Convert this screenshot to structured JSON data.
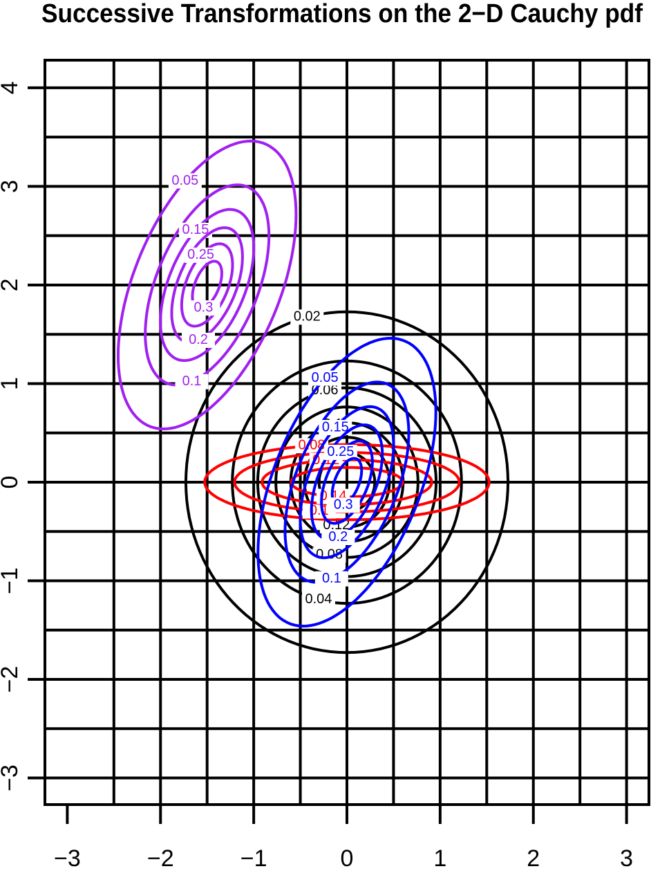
{
  "chart_data": {
    "type": "contour",
    "title": "Successive Transformations on the 2−D Cauchy pdf",
    "xlim": [
      -3.24,
      3.24
    ],
    "ylim": [
      -3.27,
      4.28
    ],
    "xticks": [
      {
        "value": -3,
        "label": "−3"
      },
      {
        "value": -2,
        "label": "−2"
      },
      {
        "value": -1,
        "label": "−1"
      },
      0,
      1,
      2,
      3
    ],
    "yticks": [
      {
        "value": -3,
        "label": "−3"
      },
      {
        "value": -2,
        "label": "−2"
      },
      {
        "value": -1,
        "label": "−1"
      },
      0,
      1,
      2,
      3,
      4
    ],
    "xgrid": [
      -2.5,
      -2,
      -1.5,
      -1,
      -0.5,
      0,
      0.5,
      1,
      1.5,
      2,
      2.5,
      3
    ],
    "ygrid": [
      -3,
      -2.5,
      -2,
      -1.5,
      -1,
      -0.5,
      0,
      0.5,
      1,
      1.5,
      2,
      2.5,
      3,
      3.5,
      4
    ],
    "series": [
      {
        "color": "#000000",
        "matrix": [
          1,
          0,
          0,
          1
        ],
        "shift": [
          0,
          0
        ],
        "levels": [
          0.02,
          0.04,
          0.06,
          0.08,
          0.1,
          0.12,
          0.14
        ]
      },
      {
        "color": "#ff0000",
        "matrix": [
          2,
          0,
          0,
          0.5
        ],
        "shift": [
          0,
          0
        ],
        "levels": [
          0.08,
          0.1,
          0.12,
          0.14
        ]
      },
      {
        "color": "#0000ff",
        "matrix": [
          0.6,
          0,
          0.45,
          0.8
        ],
        "shift": [
          0,
          0
        ],
        "levels": [
          0.05,
          0.1,
          0.15,
          0.2,
          0.25,
          0.3
        ]
      },
      {
        "color": "#a020f0",
        "matrix": [
          0.6,
          0,
          0.45,
          0.8
        ],
        "shift": [
          -1.5,
          2
        ],
        "levels": [
          0.05,
          0.1,
          0.15,
          0.2,
          0.25,
          0.3
        ]
      }
    ]
  }
}
